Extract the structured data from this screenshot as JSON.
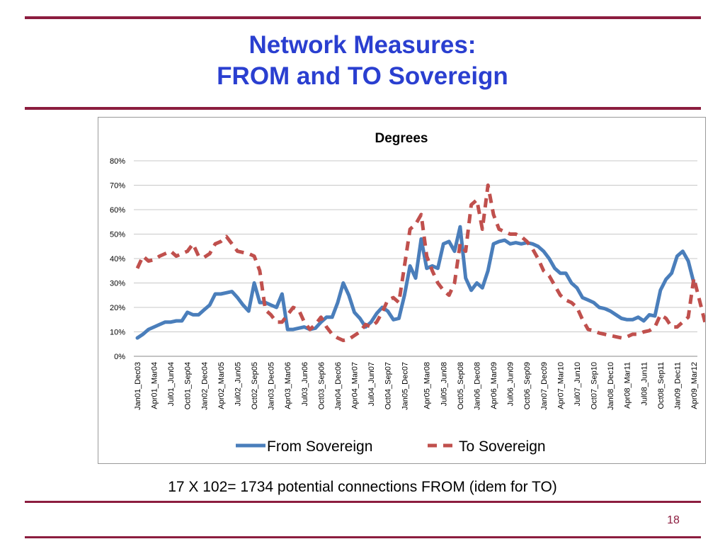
{
  "slide": {
    "title_line1": "Network Measures:",
    "title_line2": "FROM and TO Sovereign",
    "caption": "17 X 102= 1734 potential connections FROM (idem for TO)",
    "page_number": "18",
    "title_color": "#2a3fd0",
    "rule_color": "#8c1d3f"
  },
  "chart_data": {
    "type": "line",
    "title": "Degrees",
    "xlabel": "",
    "ylabel": "",
    "ylim": [
      0,
      0.8
    ],
    "y_ticks": [
      "0%",
      "10%",
      "20%",
      "30%",
      "40%",
      "50%",
      "60%",
      "70%",
      "80%"
    ],
    "grid": true,
    "legend_position": "bottom",
    "x_tick_labels": [
      "Jan01_Dec03",
      "Apr01_Mar04",
      "Jul01_Jun04",
      "Oct01_Sep04",
      "Jan02_Dec04",
      "Apr02_Mar05",
      "Jul02_Jun05",
      "Oct02_Sep05",
      "Jan03_Dec05",
      "Apr03_Mar06",
      "Jul03_Jun06",
      "Oct03_Sep06",
      "Jan04_Dec06",
      "Apr04_Mar07",
      "Jul04_Jun07",
      "Oct04_Sep07",
      "Jan05_Dec07",
      "Apr05_Mar08",
      "Jul05_Jun08",
      "Oct05_Sep08",
      "Jan06_Dec08",
      "Apr06_Mar09",
      "Jul06_Jun09",
      "Oct06_Sep09",
      "Jan07_Dec09",
      "Apr07_Mar10",
      "Jul07_Jun10",
      "Oct07_Sep10",
      "Jan08_Dec10",
      "Apr08_Mar11",
      "Jul08_Jun11",
      "Oct08_Sep11",
      "Jan09_Dec11",
      "Apr09_Mar12"
    ],
    "series": [
      {
        "name": "From Sovereign",
        "color": "#4a7ebb",
        "style": "solid",
        "values": [
          0.075,
          0.09,
          0.11,
          0.12,
          0.13,
          0.14,
          0.14,
          0.145,
          0.145,
          0.18,
          0.17,
          0.17,
          0.19,
          0.21,
          0.255,
          0.255,
          0.26,
          0.265,
          0.24,
          0.21,
          0.185,
          0.3,
          0.22,
          0.22,
          0.21,
          0.2,
          0.255,
          0.11,
          0.11,
          0.115,
          0.12,
          0.11,
          0.115,
          0.14,
          0.16,
          0.16,
          0.22,
          0.3,
          0.25,
          0.18,
          0.155,
          0.12,
          0.14,
          0.175,
          0.2,
          0.185,
          0.15,
          0.155,
          0.25,
          0.37,
          0.32,
          0.48,
          0.36,
          0.37,
          0.36,
          0.46,
          0.47,
          0.43,
          0.53,
          0.32,
          0.27,
          0.3,
          0.28,
          0.35,
          0.46,
          0.47,
          0.475,
          0.46,
          0.465,
          0.46,
          0.465,
          0.46,
          0.45,
          0.43,
          0.4,
          0.36,
          0.34,
          0.34,
          0.3,
          0.28,
          0.24,
          0.23,
          0.22,
          0.2,
          0.195,
          0.185,
          0.17,
          0.155,
          0.15,
          0.15,
          0.16,
          0.145,
          0.17,
          0.165,
          0.27,
          0.315,
          0.34,
          0.41,
          0.43,
          0.39,
          0.3
        ]
      },
      {
        "name": "To Sovereign",
        "color": "#c0504d",
        "style": "dashed",
        "values": [
          0.36,
          0.41,
          0.39,
          0.395,
          0.41,
          0.42,
          0.43,
          0.41,
          0.42,
          0.43,
          0.46,
          0.41,
          0.405,
          0.42,
          0.46,
          0.47,
          0.49,
          0.46,
          0.43,
          0.425,
          0.42,
          0.41,
          0.35,
          0.19,
          0.17,
          0.14,
          0.14,
          0.17,
          0.2,
          0.19,
          0.14,
          0.11,
          0.13,
          0.16,
          0.12,
          0.09,
          0.075,
          0.065,
          0.07,
          0.085,
          0.1,
          0.13,
          0.12,
          0.14,
          0.18,
          0.23,
          0.24,
          0.22,
          0.37,
          0.52,
          0.54,
          0.58,
          0.41,
          0.35,
          0.3,
          0.27,
          0.25,
          0.3,
          0.46,
          0.43,
          0.62,
          0.64,
          0.52,
          0.7,
          0.58,
          0.52,
          0.51,
          0.5,
          0.5,
          0.49,
          0.47,
          0.44,
          0.4,
          0.35,
          0.33,
          0.29,
          0.25,
          0.23,
          0.22,
          0.2,
          0.15,
          0.11,
          0.105,
          0.095,
          0.09,
          0.085,
          0.08,
          0.075,
          0.08,
          0.09,
          0.09,
          0.1,
          0.105,
          0.12,
          0.17,
          0.155,
          0.12,
          0.12,
          0.14,
          0.16,
          0.32,
          0.23,
          0.14
        ]
      }
    ]
  }
}
